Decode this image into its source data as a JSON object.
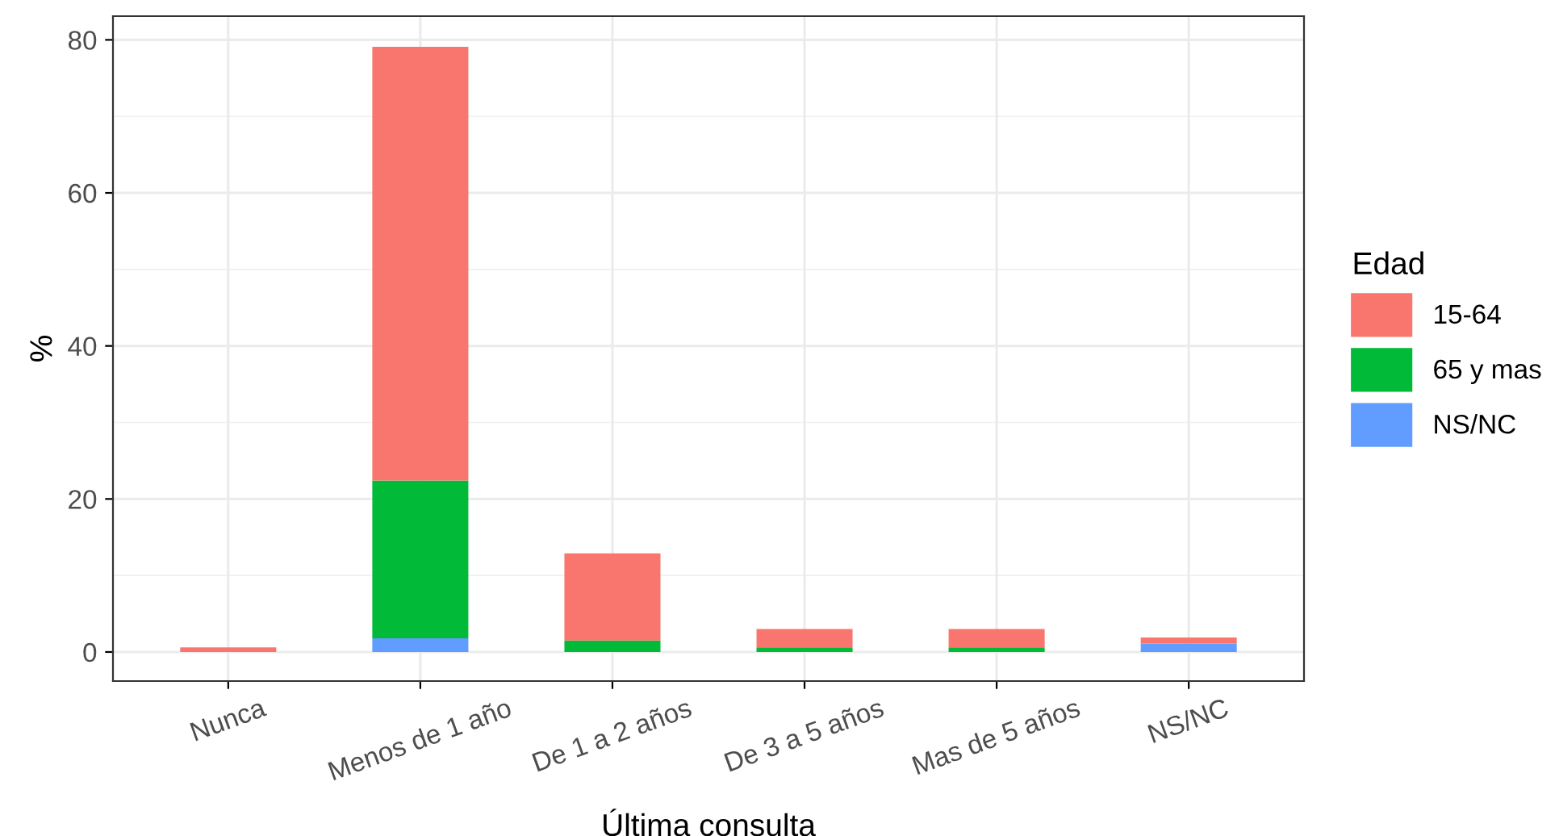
{
  "chart_data": {
    "type": "bar",
    "stacked": true,
    "xlabel": "Última consulta",
    "ylabel": "%",
    "legend_title": "Edad",
    "categories": [
      "Nunca",
      "Menos de 1 año",
      "De 1 a 2 años",
      "De 3 a 5 años",
      "Mas de 5 años",
      "NS/NC"
    ],
    "series": [
      {
        "name": "NS/NC",
        "color": "#619cff",
        "values": [
          0,
          1.8,
          0,
          0,
          0,
          1.1
        ]
      },
      {
        "name": "65 y mas",
        "color": "#00ba38",
        "values": [
          0,
          20.6,
          1.5,
          0.6,
          0.6,
          0
        ]
      },
      {
        "name": "15-64",
        "color": "#f8766d",
        "values": [
          0.6,
          56.7,
          11.4,
          2.4,
          2.4,
          0.8
        ]
      }
    ],
    "ylim": [
      -3.8,
      83.1
    ],
    "yticks": [
      0,
      20,
      40,
      60,
      80
    ],
    "grid": true,
    "legend": "right"
  }
}
